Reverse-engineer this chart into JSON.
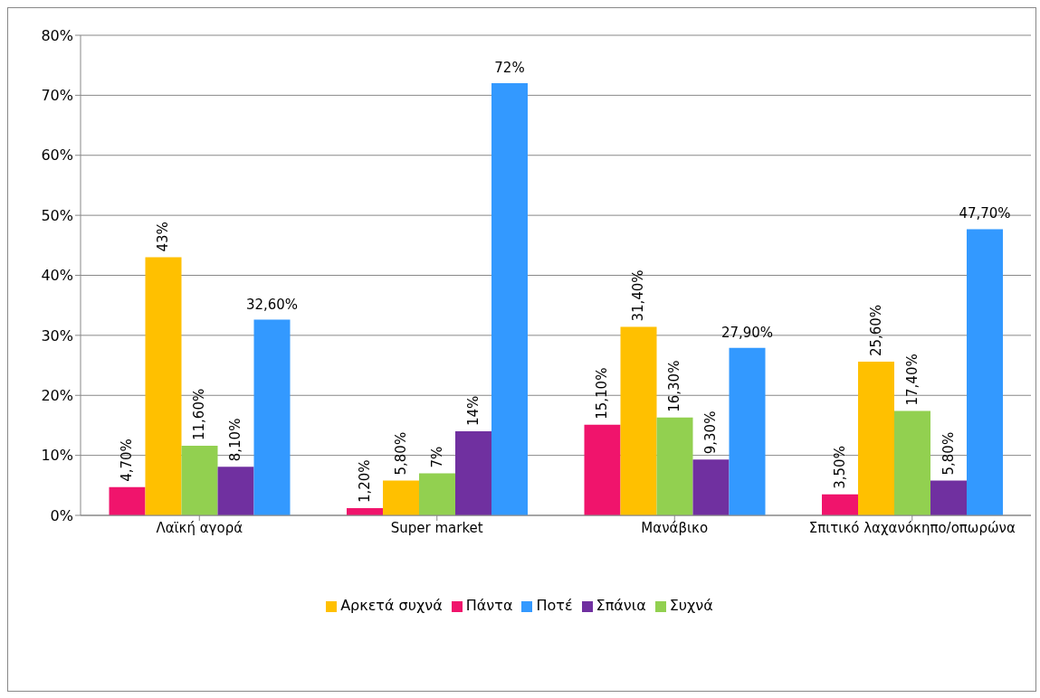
{
  "chart_data": {
    "type": "bar",
    "categories": [
      "Λαϊκή αγορά",
      "Super market",
      "Μανάβικο",
      "Σπιτικό λαχανόκηπο/οπωρώνα"
    ],
    "series": [
      {
        "name": "Πάντα",
        "color": "#f0146c",
        "values": [
          4.7,
          1.2,
          15.1,
          3.5
        ],
        "value_labels": [
          "4,70%",
          "1,20%",
          "15,10%",
          "3,50%"
        ]
      },
      {
        "name": "Αρκετά συχνά",
        "color": "#ffc000",
        "values": [
          43,
          5.8,
          31.4,
          25.6
        ],
        "value_labels": [
          "43%",
          "5,80%",
          "31,40%",
          "25,60%"
        ]
      },
      {
        "name": "Συχνά",
        "color": "#92d050",
        "values": [
          11.6,
          7,
          16.3,
          17.4
        ],
        "value_labels": [
          "11,60%",
          "7%",
          "16,30%",
          "17,40%"
        ]
      },
      {
        "name": "Σπάνια",
        "color": "#7030a0",
        "values": [
          8.1,
          14,
          9.3,
          5.8
        ],
        "value_labels": [
          "8,10%",
          "14%",
          "9,30%",
          "5,80%"
        ]
      },
      {
        "name": "Ποτέ",
        "color": "#3399ff",
        "values": [
          32.6,
          72,
          27.9,
          47.7
        ],
        "value_labels": [
          "32,60%",
          "72%",
          "27,90%",
          "47,70%"
        ]
      }
    ],
    "ylim": [
      0,
      80
    ],
    "yticks": [
      {
        "value": 0,
        "label": "0%"
      },
      {
        "value": 10,
        "label": "10%"
      },
      {
        "value": 20,
        "label": "20%"
      },
      {
        "value": 30,
        "label": "30%"
      },
      {
        "value": 40,
        "label": "40%"
      },
      {
        "value": 50,
        "label": "50%"
      },
      {
        "value": 60,
        "label": "60%"
      },
      {
        "value": 70,
        "label": "70%"
      },
      {
        "value": 80,
        "label": "80%"
      }
    ],
    "grid": "y",
    "legend": "bottom"
  }
}
